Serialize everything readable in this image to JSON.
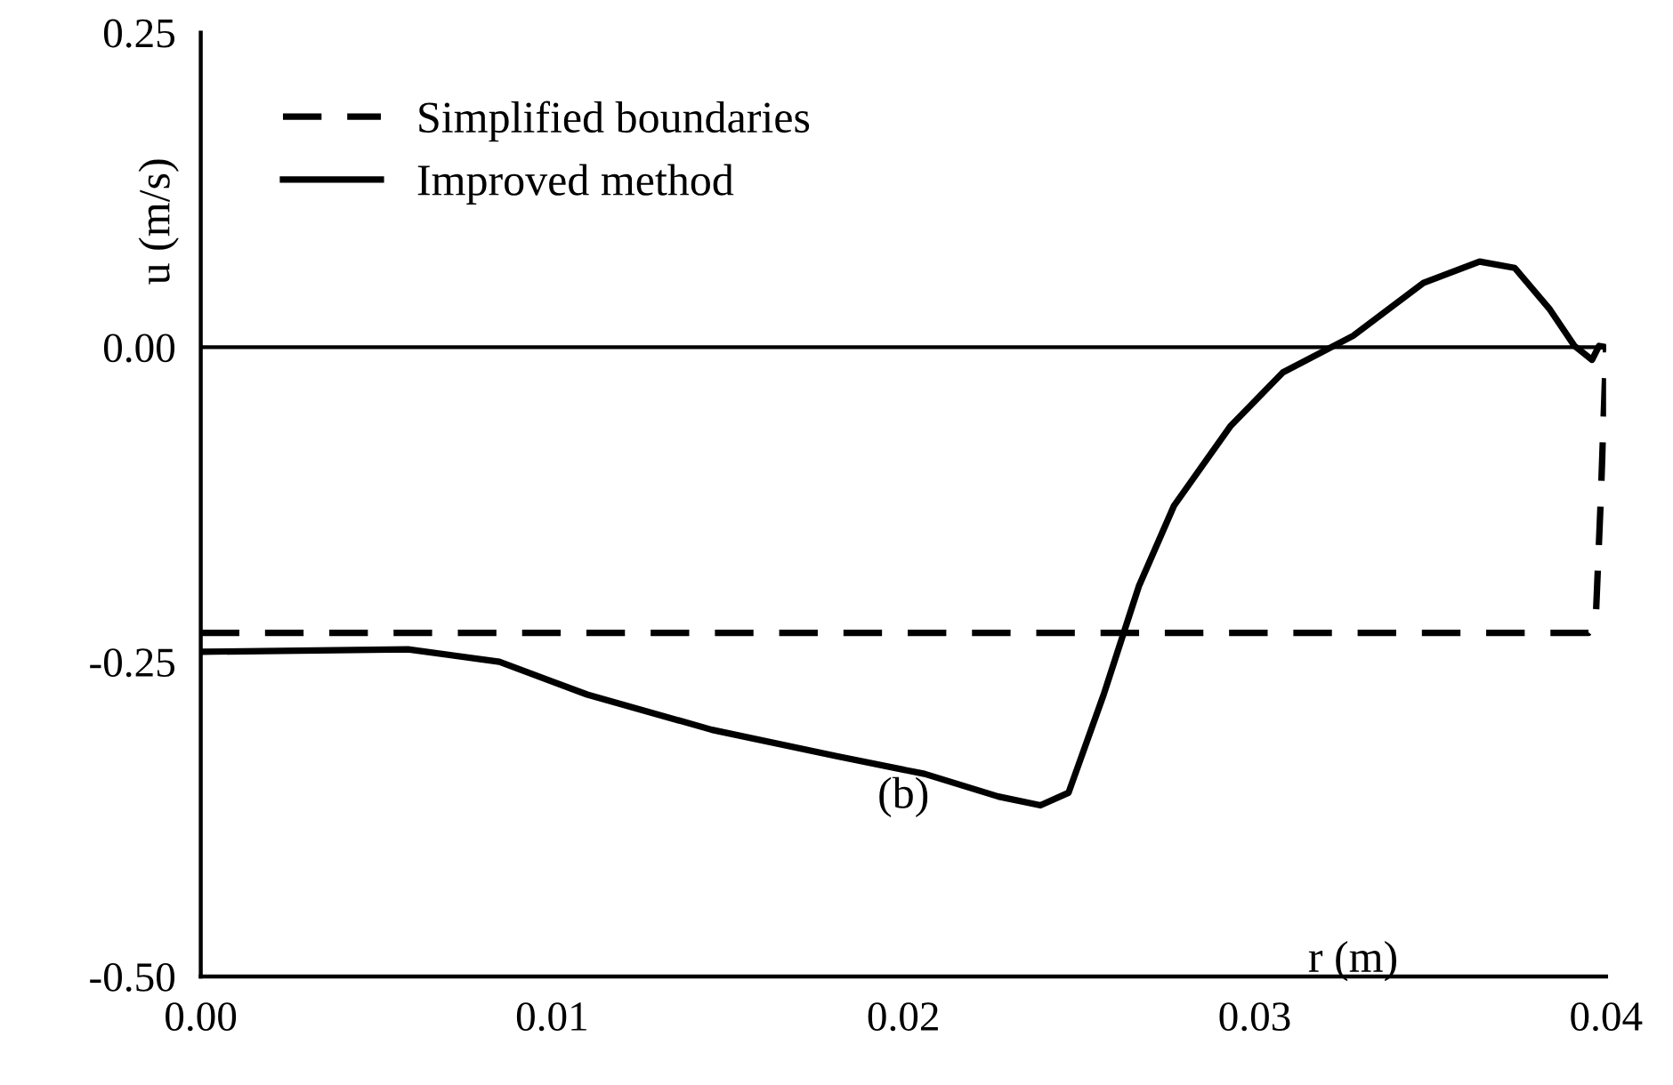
{
  "chart_data": {
    "type": "line",
    "xlabel": "r (m)",
    "ylabel": "u (m/s)",
    "series": [
      {
        "name": "Simplified boundaries",
        "color": "#000000",
        "line_style": "dashed",
        "x": [
          0,
          0.0395,
          0.0397,
          0.03985,
          0.04
        ],
        "values": [
          -0.227,
          -0.227,
          -0.22,
          -0.12,
          0
        ]
      },
      {
        "name": "Improved method",
        "color": "#000000",
        "line_style": "solid",
        "x": [
          0,
          0.0059,
          0.0085,
          0.011,
          0.01455,
          0.0181,
          0.0206,
          0.0227,
          0.0239,
          0.0247,
          0.0257,
          0.0267,
          0.0277,
          0.0293,
          0.0308,
          0.0328,
          0.0348,
          0.0364,
          0.0374,
          0.0384,
          0.0391,
          0.0396,
          0.0398,
          0.04
        ],
        "values": [
          -0.242,
          -0.24,
          -0.25,
          -0.276,
          -0.304,
          -0.325,
          -0.339,
          -0.357,
          -0.364,
          -0.354,
          -0.276,
          -0.19,
          -0.126,
          -0.063,
          -0.02,
          0.009,
          0.051,
          0.068,
          0.063,
          0.03,
          0.001,
          -0.01,
          0.001,
          0
        ]
      }
    ],
    "xlim": [
      0,
      0.04
    ],
    "ylim": [
      -0.5,
      0.25
    ],
    "xticks": [
      {
        "value": 0,
        "label": "0.00"
      },
      {
        "value": 0.01,
        "label": "0.01"
      },
      {
        "value": 0.02,
        "label": "0.02"
      },
      {
        "value": 0.03,
        "label": "0.03"
      },
      {
        "value": 0.04,
        "label": "0.04"
      }
    ],
    "yticks": [
      {
        "value": -0.5,
        "label": "-0.50"
      },
      {
        "value": -0.25,
        "label": "-0.25"
      },
      {
        "value": 0,
        "label": "0.00"
      },
      {
        "value": 0.25,
        "label": "0.25"
      }
    ],
    "ref_lines": [
      {
        "axis": "y",
        "value": 0,
        "color": "#000000",
        "line_style": "solid"
      }
    ],
    "annotations": [
      "(b)"
    ],
    "legend": "top left",
    "grid": false,
    "marker": "none"
  }
}
